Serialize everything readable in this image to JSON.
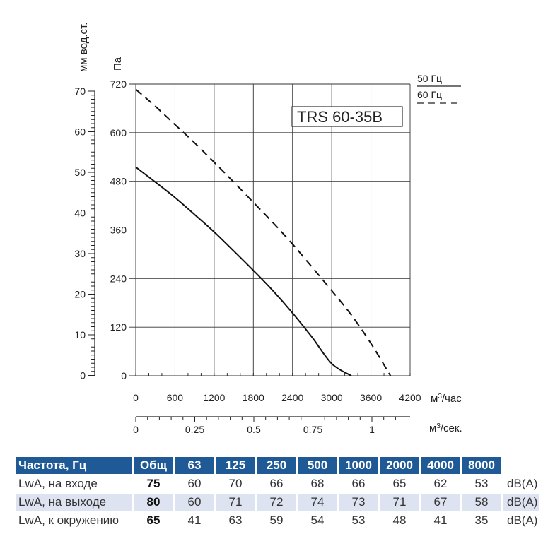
{
  "chart_data": {
    "type": "line",
    "title": "TRS 60-35B",
    "xlabel": "м³/час",
    "x2label": "м³/сек.",
    "ylabel": "Па",
    "y2label": "мм вод.ст.",
    "xlim": [
      0,
      4200
    ],
    "ylim": [
      0,
      720
    ],
    "x_ticks": [
      "0",
      "600",
      "1200",
      "1800",
      "2400",
      "3000",
      "3600",
      "4200"
    ],
    "y_ticks": [
      "0",
      "120",
      "240",
      "360",
      "480",
      "600",
      "720"
    ],
    "x2_ticks": [
      "0",
      "0.25",
      "0.5",
      "0.75",
      "1"
    ],
    "x2_tick_values": [
      0,
      0.25,
      0.5,
      0.75,
      1
    ],
    "y2_ticks": [
      "0",
      "10",
      "20",
      "30",
      "40",
      "50",
      "60",
      "70"
    ],
    "y2_tick_values": [
      0,
      10,
      20,
      30,
      40,
      50,
      60,
      70
    ],
    "grid": true,
    "legend": [
      "50 Гц",
      "60 Гц"
    ],
    "series": [
      {
        "name": "50 Гц",
        "style": "solid",
        "x": [
          0,
          300,
          600,
          900,
          1200,
          1500,
          1800,
          2100,
          2400,
          2700,
          3000,
          3300
        ],
        "y": [
          515,
          478,
          440,
          398,
          355,
          308,
          260,
          210,
          155,
          95,
          30,
          0
        ]
      },
      {
        "name": "60 Гц",
        "style": "dashed",
        "x": [
          0,
          300,
          600,
          900,
          1200,
          1500,
          1800,
          2100,
          2400,
          2700,
          3000,
          3300,
          3600,
          3900
        ],
        "y": [
          707,
          665,
          620,
          575,
          527,
          478,
          428,
          378,
          325,
          268,
          210,
          150,
          80,
          0
        ]
      }
    ]
  },
  "noise_table": {
    "headers": [
      "Частота, Гц",
      "Общ",
      "63",
      "125",
      "250",
      "500",
      "1000",
      "2000",
      "4000",
      "8000"
    ],
    "rows": [
      {
        "label": "LwA, на входе",
        "total": "75",
        "values": [
          "60",
          "70",
          "66",
          "68",
          "66",
          "65",
          "62",
          "53"
        ],
        "unit": "dB(A)"
      },
      {
        "label": "LwA, на выходе",
        "total": "80",
        "values": [
          "60",
          "71",
          "72",
          "74",
          "73",
          "71",
          "67",
          "58"
        ],
        "unit": "dB(A)"
      },
      {
        "label": "LwA, к окружению",
        "total": "65",
        "values": [
          "41",
          "63",
          "59",
          "54",
          "53",
          "48",
          "41",
          "35"
        ],
        "unit": "dB(A)"
      }
    ]
  }
}
